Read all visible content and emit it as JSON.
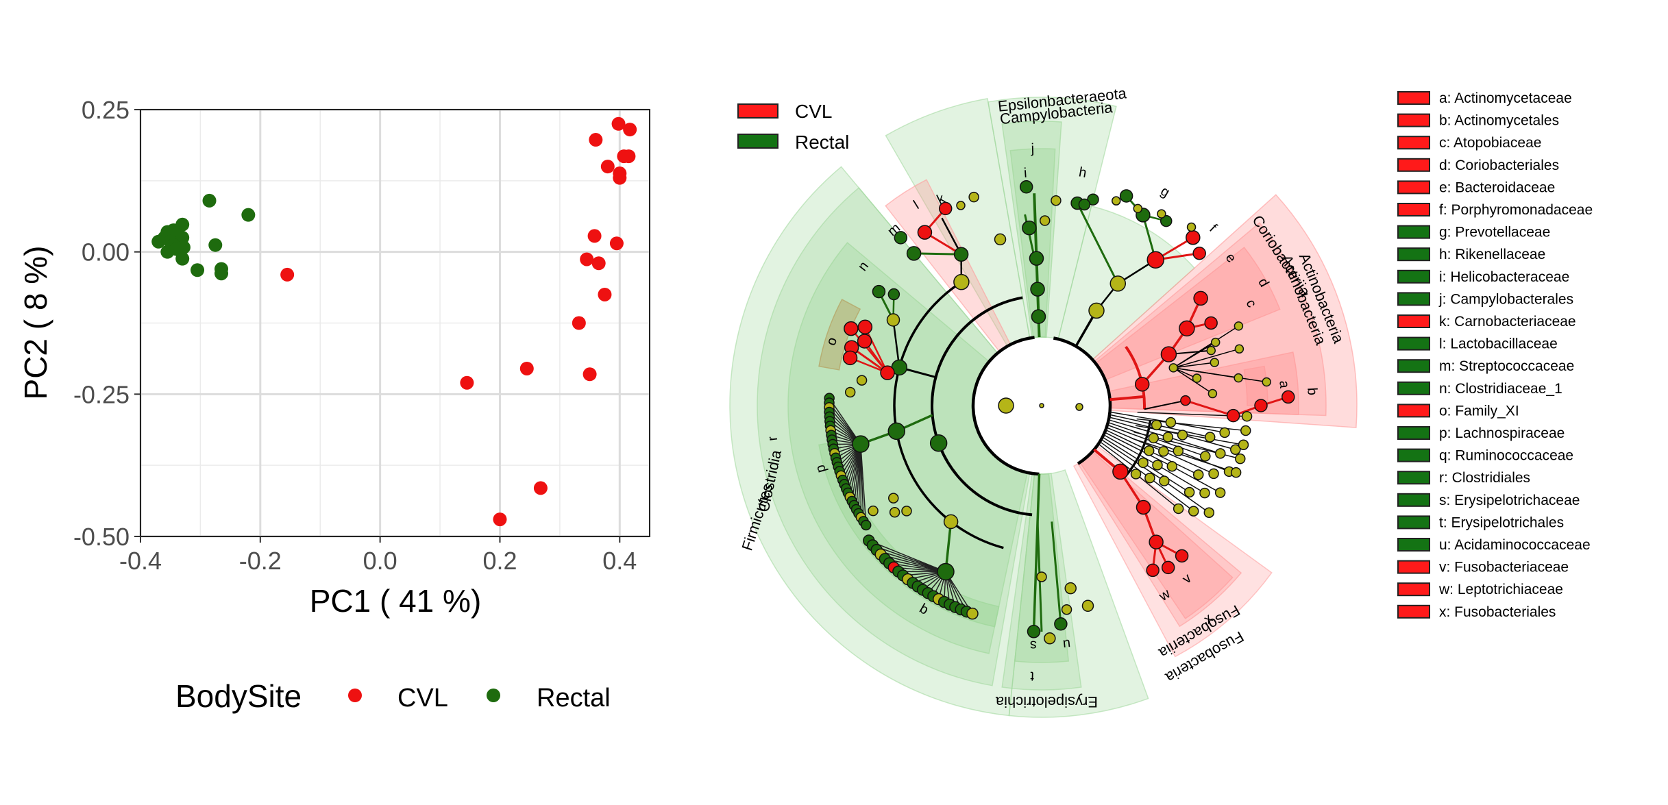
{
  "colors": {
    "cvl": "#ee1111",
    "rectal": "#1e6b0e",
    "nonsig": "#b5b518",
    "shade_cvl": "#ff9b9b",
    "shade_rectal": "#9fd79a"
  },
  "chart_data": [
    {
      "type": "scatter",
      "xlabel": "PC1 ( 41 %)",
      "ylabel": "PC2 ( 8 %)",
      "xlim": [
        -0.4,
        0.45
      ],
      "ylim": [
        -0.5,
        0.25
      ],
      "x_ticks": [
        "-0.4",
        "-0.2",
        "0.0",
        "0.2",
        "0.4"
      ],
      "y_ticks": [
        "0.25",
        "0.00",
        "-0.25",
        "-0.50"
      ],
      "grid": true,
      "legend": {
        "title": "BodySite",
        "position": "bottom",
        "entries": [
          "CVL",
          "Rectal"
        ]
      },
      "series": [
        {
          "name": "CVL",
          "points": [
            [
              0.398,
              0.225
            ],
            [
              0.417,
              0.215
            ],
            [
              0.36,
              0.197
            ],
            [
              0.407,
              0.168
            ],
            [
              0.415,
              0.168
            ],
            [
              0.38,
              0.15
            ],
            [
              0.4,
              0.138
            ],
            [
              0.4,
              0.13
            ],
            [
              0.358,
              0.028
            ],
            [
              0.395,
              0.015
            ],
            [
              0.345,
              -0.013
            ],
            [
              0.365,
              -0.02
            ],
            [
              0.375,
              -0.075
            ],
            [
              0.332,
              -0.125
            ],
            [
              0.35,
              -0.215
            ],
            [
              0.245,
              -0.205
            ],
            [
              0.145,
              -0.23
            ],
            [
              0.268,
              -0.415
            ],
            [
              0.2,
              -0.47
            ],
            [
              -0.155,
              -0.04
            ]
          ]
        },
        {
          "name": "Rectal",
          "points": [
            [
              -0.285,
              0.09
            ],
            [
              -0.22,
              0.065
            ],
            [
              -0.33,
              0.048
            ],
            [
              -0.345,
              0.038
            ],
            [
              -0.355,
              0.035
            ],
            [
              -0.34,
              0.03
            ],
            [
              -0.33,
              0.025
            ],
            [
              -0.36,
              0.025
            ],
            [
              -0.35,
              0.018
            ],
            [
              -0.335,
              0.016
            ],
            [
              -0.37,
              0.018
            ],
            [
              -0.345,
              0.012
            ],
            [
              -0.328,
              0.008
            ],
            [
              -0.34,
              0.005
            ],
            [
              -0.355,
              0.0
            ],
            [
              -0.275,
              0.012
            ],
            [
              -0.33,
              -0.012
            ],
            [
              -0.305,
              -0.032
            ],
            [
              -0.265,
              -0.03
            ],
            [
              -0.265,
              -0.038
            ]
          ]
        }
      ]
    },
    {
      "type": "cladogram",
      "legend": {
        "position": "top-left",
        "entries": [
          "CVL",
          "Rectal"
        ]
      },
      "clade_labels": [
        "Epsilonbacteraeota",
        "Campylobacteria",
        "Coriobacteriia",
        "Actinobacteria",
        "Actinobacteria",
        "Firmicutes",
        "Clostridia",
        "Erysipelotrichia",
        "Fusobacteriia",
        "Fusobacteria"
      ],
      "taxa": [
        {
          "key": "a",
          "name": "Actinomycetaceae",
          "group": "CVL"
        },
        {
          "key": "b",
          "name": "Actinomycetales",
          "group": "CVL"
        },
        {
          "key": "c",
          "name": "Atopobiaceae",
          "group": "CVL"
        },
        {
          "key": "d",
          "name": "Coriobacteriales",
          "group": "CVL"
        },
        {
          "key": "e",
          "name": "Bacteroidaceae",
          "group": "CVL"
        },
        {
          "key": "f",
          "name": "Porphyromonadaceae",
          "group": "CVL"
        },
        {
          "key": "g",
          "name": "Prevotellaceae",
          "group": "Rectal"
        },
        {
          "key": "h",
          "name": "Rikenellaceae",
          "group": "Rectal"
        },
        {
          "key": "i",
          "name": "Helicobacteraceae",
          "group": "Rectal"
        },
        {
          "key": "j",
          "name": "Campylobacterales",
          "group": "Rectal"
        },
        {
          "key": "k",
          "name": "Carnobacteriaceae",
          "group": "CVL"
        },
        {
          "key": "l",
          "name": "Lactobacillaceae",
          "group": "Rectal"
        },
        {
          "key": "m",
          "name": "Streptococcaceae",
          "group": "Rectal"
        },
        {
          "key": "n",
          "name": "Clostridiaceae_1",
          "group": "Rectal"
        },
        {
          "key": "o",
          "name": "Family_XI",
          "group": "CVL"
        },
        {
          "key": "p",
          "name": "Lachnospiraceae",
          "group": "Rectal"
        },
        {
          "key": "q",
          "name": "Ruminococcaceae",
          "group": "Rectal"
        },
        {
          "key": "r",
          "name": "Clostridiales",
          "group": "Rectal"
        },
        {
          "key": "s",
          "name": "Erysipelotrichaceae",
          "group": "Rectal"
        },
        {
          "key": "t",
          "name": "Erysipelotrichales",
          "group": "Rectal"
        },
        {
          "key": "u",
          "name": "Acidaminococcaceae",
          "group": "Rectal"
        },
        {
          "key": "v",
          "name": "Fusobacteriaceae",
          "group": "CVL"
        },
        {
          "key": "w",
          "name": "Leptotrichiaceae",
          "group": "CVL"
        },
        {
          "key": "x",
          "name": "Fusobacteriales",
          "group": "CVL"
        }
      ]
    }
  ]
}
